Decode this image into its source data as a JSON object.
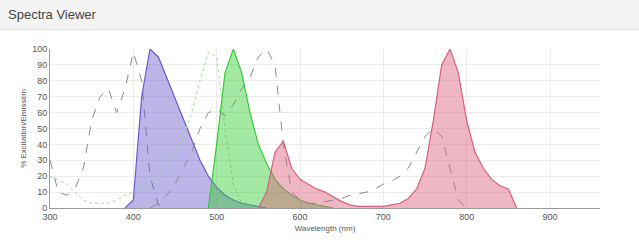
{
  "chart_data": {
    "type": "line",
    "title": "Spectra Viewer",
    "x_label": "Wavelength (nm)",
    "y_label": "% Excitation/Emission",
    "x": [
      300,
      310,
      320,
      330,
      340,
      350,
      360,
      370,
      380,
      390,
      400,
      410,
      420,
      430,
      440,
      450,
      460,
      470,
      480,
      490,
      500,
      510,
      520,
      530,
      540,
      550,
      560,
      570,
      580,
      590,
      600,
      610,
      620,
      630,
      640,
      650,
      660,
      670,
      680,
      690,
      700,
      710,
      720,
      730,
      740,
      750,
      760,
      770,
      780,
      790,
      800,
      810,
      820,
      830,
      840,
      850,
      860
    ],
    "series": [
      {
        "type": "line",
        "line_style": "dashed",
        "color": "#8c8c8c",
        "values": [
          30,
          10,
          8,
          12,
          25,
          55,
          70,
          75,
          60,
          75,
          98,
          80,
          20,
          2,
          0,
          null,
          null,
          null,
          null,
          null,
          null,
          null,
          null,
          null,
          null,
          null,
          null,
          null,
          null,
          null,
          null,
          null,
          null,
          null,
          null,
          null,
          null,
          null,
          null,
          null,
          null,
          null,
          null,
          null,
          null,
          null,
          null,
          null,
          null,
          null,
          null,
          null,
          null,
          null,
          null,
          null,
          null
        ]
      },
      {
        "type": "area",
        "line_style": "solid",
        "color": "#6a5acd",
        "values": [
          null,
          null,
          null,
          null,
          null,
          null,
          null,
          null,
          null,
          0,
          5,
          70,
          100,
          95,
          82,
          68,
          55,
          42,
          30,
          20,
          13,
          8,
          5,
          3,
          2,
          1,
          0,
          null,
          null,
          null,
          null,
          null,
          null,
          null,
          null,
          null,
          null,
          null,
          null,
          null,
          null,
          null,
          null,
          null,
          null,
          null,
          null,
          null,
          null,
          null,
          null,
          null,
          null,
          null,
          null,
          null,
          null
        ]
      },
      {
        "type": "line",
        "line_style": "dotted",
        "color": "#9ad89a",
        "values": [
          20,
          18,
          15,
          10,
          5,
          3,
          3,
          3,
          5,
          8,
          10,
          12,
          15,
          20,
          28,
          35,
          45,
          60,
          80,
          98,
          95,
          50,
          15,
          3,
          0,
          null,
          null,
          null,
          null,
          null,
          null,
          null,
          null,
          null,
          null,
          null,
          null,
          null,
          null,
          null,
          null,
          null,
          null,
          null,
          null,
          null,
          null,
          null,
          null,
          null,
          null,
          null,
          null,
          null,
          null,
          null,
          null
        ]
      },
      {
        "type": "area",
        "line_style": "solid",
        "color": "#33cc33",
        "values": [
          null,
          null,
          null,
          null,
          null,
          null,
          null,
          null,
          null,
          null,
          null,
          null,
          null,
          null,
          null,
          null,
          null,
          null,
          null,
          0,
          40,
          85,
          100,
          85,
          60,
          40,
          28,
          18,
          12,
          8,
          5,
          3,
          2,
          1,
          0,
          null,
          null,
          null,
          null,
          null,
          null,
          null,
          null,
          null,
          null,
          null,
          null,
          null,
          null,
          null,
          null,
          null,
          null,
          null,
          null,
          null,
          null
        ]
      },
      {
        "type": "line",
        "line_style": "dashed",
        "color": "#8c8c8c",
        "values": [
          null,
          null,
          null,
          null,
          null,
          null,
          null,
          null,
          null,
          null,
          null,
          null,
          0,
          3,
          8,
          15,
          25,
          35,
          50,
          60,
          62,
          58,
          65,
          75,
          82,
          95,
          100,
          90,
          40,
          10,
          5,
          3,
          3,
          4,
          5,
          6,
          8,
          9,
          10,
          12,
          15,
          17,
          20,
          25,
          35,
          45,
          50,
          45,
          25,
          5,
          0,
          null,
          null,
          null,
          null,
          null,
          null
        ]
      },
      {
        "type": "area",
        "line_style": "solid",
        "color": "#d9607a",
        "values": [
          null,
          null,
          null,
          null,
          null,
          null,
          null,
          null,
          null,
          null,
          null,
          null,
          null,
          null,
          null,
          null,
          null,
          null,
          null,
          null,
          null,
          null,
          null,
          null,
          null,
          0,
          10,
          35,
          42,
          25,
          18,
          15,
          12,
          10,
          7,
          4,
          2,
          1,
          1,
          1,
          1,
          2,
          3,
          6,
          12,
          25,
          55,
          90,
          100,
          85,
          55,
          35,
          25,
          18,
          14,
          12,
          0
        ]
      }
    ],
    "xlim": [
      300,
      960
    ],
    "xticks": [
      300,
      400,
      500,
      600,
      700,
      800,
      900
    ],
    "ylim": [
      0,
      100
    ],
    "yticks": [
      0,
      10,
      20,
      30,
      40,
      50,
      60,
      70,
      80,
      90,
      100
    ],
    "grid": true
  }
}
